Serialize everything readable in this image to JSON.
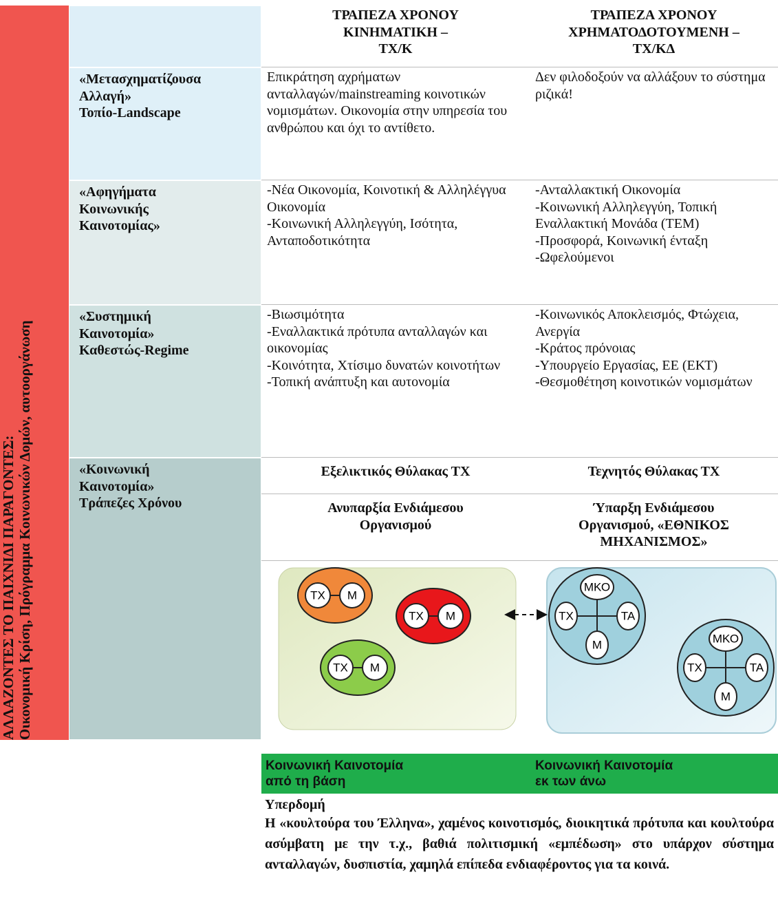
{
  "header": {
    "col3": [
      "ΤΡΑΠΕΖΑ ΧΡΟΝΟΥ",
      "ΚΙΝΗΜΑΤΙΚΗ –",
      "ΤΧ/Κ"
    ],
    "col4": [
      "ΤΡΑΠΕΖΑ ΧΡΟΝΟΥ",
      "ΧΡΗΜΑΤΟΔΟΤΟΥΜΕΝΗ –",
      "ΤΧ/ΚΔ"
    ]
  },
  "side": [
    "ΑΛΛΑΖΟΝΤΕΣ ΤΟ ΠΑΙΧΝΙΔΙ ΠΑΡΑΓΟΝΤΕΣ:",
    "Οικονομική Κρίση, Πρόγραμμα Κοινωνικών Δομών, αυτοοργάνωση"
  ],
  "rows": [
    {
      "label": [
        "«Μετασχηματίζουσα",
        "Αλλαγή»",
        "Τοπίο-Landscape"
      ],
      "col3": [
        "Επικράτηση αχρήματων ανταλλαγών/mainstreaming κοινοτικών νομισμάτων. Οικονομία στην υπηρεσία του ανθρώπου και όχι το αντίθετο."
      ],
      "col4": [
        "Δεν φιλοδοξούν να αλλάξουν το σύστημα ριζικά!"
      ]
    },
    {
      "label": [
        "«Αφηγήματα",
        "Κοινωνικής",
        "Καινοτομίας»"
      ],
      "col3": [
        "-Νέα Οικονομία, Κοινοτική & Αλληλέγγυα Οικονομία",
        "-Κοινωνική Αλληλεγγύη, Ισότητα, Ανταποδοτικότητα"
      ],
      "col4": [
        "-Ανταλλακτική Οικονομία",
        "-Κοινωνική Αλληλεγγύη, Τοπική Εναλλακτική Μονάδα (ΤΕΜ)",
        "-Προσφορά, Κοινωνική ένταξη",
        "-Ωφελούμενοι"
      ]
    },
    {
      "label": [
        "«Συστημική",
        "Καινοτομία»",
        "Καθεστώς-Regime"
      ],
      "col3": [
        "-Βιωσιμότητα",
        "-Εναλλακτικά πρότυπα ανταλλαγών και οικονομίας",
        "-Κοινότητα, Χτίσιμο δυνατών κοινοτήτων",
        "-Τοπική ανάπτυξη και αυτονομία"
      ],
      "col4": [
        "-Κοινωνικός Αποκλεισμός, Φτώχεια, Ανεργία",
        "-Κράτος πρόνοιας",
        "-Υπουργείο Εργασίας, ΕΕ (ΕΚΤ)",
        "-Θεσμοθέτηση κοινοτικών νομισμάτων"
      ]
    },
    {
      "label": [
        "«Κοινωνική",
        "Καινοτομία»",
        "Τράπεζες Χρόνου"
      ],
      "enclave": [
        "Εξελικτικός Θύλακας ΤΧ",
        "Τεχνητός Θύλακας ΤΧ"
      ],
      "intermediary": [
        [
          "Ανυπαρξία Ενδιάμεσου",
          "Οργανισμού"
        ],
        [
          "Ύπαρξη Ενδιάμεσου",
          "Οργανισμού, «ΕΘΝΙΚΟΣ",
          "ΜΗΧΑΝΙΣΜΟΣ»"
        ]
      ]
    }
  ],
  "diagram": {
    "left_groups": [
      [
        "ΤΧ",
        "Μ"
      ],
      [
        "ΤΧ",
        "Μ"
      ],
      [
        "ΤΧ",
        "Μ"
      ]
    ],
    "right_groups": [
      [
        "ΜΚΟ",
        "ΤΧ",
        "ΤΑ",
        "Μ"
      ],
      [
        "ΜΚΟ",
        "ΤΧ",
        "ΤΑ",
        "Μ"
      ]
    ]
  },
  "green_bar": [
    [
      "Κοινωνική Καινοτομία",
      "από τη βάση"
    ],
    [
      "Κοινωνική Καινοτομία",
      "εκ των άνω"
    ]
  ],
  "superstructure": {
    "title": "Υπερδομή",
    "text": "Η «κουλτούρα του Έλληνα», χαμένος κοινοτισμός, διοικητικά πρότυπα και κουλτούρα ασύμβατη με την τ.χ., βαθιά πολιτισμική «εμπέδωση» στο υπάρχον σύστημα ανταλλαγών, δυσπιστία, χαμηλά επίπεδα ενδιαφέροντος για τα κοινά."
  }
}
